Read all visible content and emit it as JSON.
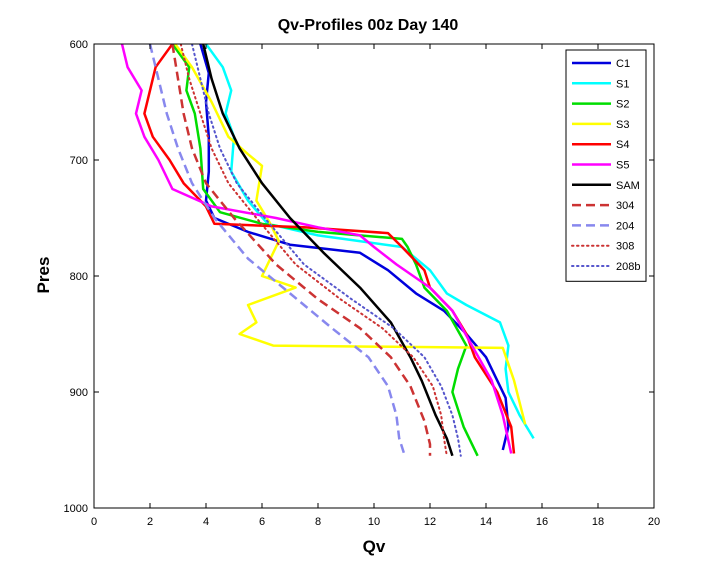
{
  "chart_data": {
    "type": "line",
    "title": "Qv-Profiles 00z Day 140",
    "xlabel": "Qv",
    "ylabel": "Pres",
    "xlim": [
      0,
      20
    ],
    "ylim": [
      600,
      1000
    ],
    "y_reversed": true,
    "grid": false,
    "legend_position": "top-right",
    "xticks": [
      0,
      2,
      4,
      6,
      8,
      10,
      12,
      14,
      16,
      18,
      20
    ],
    "yticks": [
      600,
      700,
      800,
      900,
      1000
    ],
    "series": [
      {
        "name": "C1",
        "color": "#0000dd",
        "style": "solid",
        "x": [
          3.8,
          4.1,
          4.0,
          4.1,
          4.1,
          4.0,
          4.3,
          5.5,
          7.0,
          9.5,
          10.5,
          11.5,
          12.5,
          13.3,
          14.0,
          14.4,
          14.7,
          14.8,
          14.6
        ],
        "y": [
          600,
          625,
          650,
          680,
          710,
          735,
          750,
          762,
          773,
          780,
          795,
          815,
          830,
          850,
          870,
          890,
          905,
          930,
          950
        ]
      },
      {
        "name": "S1",
        "color": "#00ffff",
        "style": "solid",
        "x": [
          4.0,
          4.6,
          4.9,
          4.7,
          5.0,
          4.9,
          5.5,
          6.2,
          8.0,
          11.0,
          12.0,
          12.6,
          13.3,
          14.5,
          14.8,
          14.7,
          14.8,
          15.2,
          15.7
        ],
        "y": [
          600,
          620,
          640,
          660,
          680,
          710,
          735,
          755,
          765,
          775,
          795,
          815,
          825,
          840,
          860,
          880,
          900,
          920,
          940
        ]
      },
      {
        "name": "S2",
        "color": "#00dd00",
        "style": "solid",
        "x": [
          2.8,
          3.4,
          3.3,
          3.6,
          3.8,
          3.9,
          4.5,
          6.0,
          8.0,
          11.0,
          11.2,
          11.5,
          11.8,
          12.6,
          13.3,
          13.0,
          12.8,
          13.2,
          13.7
        ],
        "y": [
          600,
          620,
          640,
          660,
          690,
          725,
          745,
          755,
          762,
          768,
          775,
          790,
          810,
          830,
          860,
          880,
          900,
          930,
          955
        ]
      },
      {
        "name": "S3",
        "color": "#ffff00",
        "style": "solid",
        "x": [
          2.9,
          3.5,
          4.2,
          4.8,
          5.5,
          6.0,
          5.8,
          6.3,
          6.6,
          6.3,
          6.0,
          7.2,
          5.5,
          5.8,
          5.2,
          6.4,
          14.6,
          15.0,
          15.4
        ],
        "y": [
          600,
          620,
          650,
          680,
          695,
          705,
          735,
          755,
          770,
          785,
          800,
          810,
          825,
          840,
          850,
          860,
          862,
          890,
          928
        ]
      },
      {
        "name": "S4",
        "color": "#ff0000",
        "style": "solid",
        "x": [
          2.8,
          2.2,
          2.0,
          1.8,
          2.1,
          2.7,
          3.2,
          4.0,
          4.3,
          7.5,
          10.5,
          11.0,
          11.8,
          12.0,
          12.8,
          13.3,
          13.6,
          14.4,
          14.9,
          15.0
        ],
        "y": [
          600,
          620,
          640,
          660,
          680,
          700,
          720,
          740,
          755,
          758,
          763,
          775,
          795,
          810,
          830,
          850,
          870,
          900,
          930,
          953
        ]
      },
      {
        "name": "S5",
        "color": "#ff00ff",
        "style": "solid",
        "x": [
          1.0,
          1.2,
          1.7,
          1.5,
          1.8,
          2.3,
          2.8,
          4.2,
          6.5,
          8.0,
          9.5,
          10.0,
          10.8,
          12.0,
          12.8,
          13.5,
          14.2,
          14.6,
          14.9
        ],
        "y": [
          600,
          620,
          640,
          660,
          680,
          700,
          725,
          740,
          750,
          758,
          765,
          775,
          790,
          810,
          830,
          860,
          890,
          920,
          953
        ]
      },
      {
        "name": "SAM",
        "color": "#000000",
        "style": "solid",
        "x": [
          3.9,
          4.2,
          4.6,
          5.2,
          6.0,
          7.0,
          8.2,
          9.5,
          10.6,
          11.3,
          11.7,
          12.2,
          12.6,
          12.8
        ],
        "y": [
          600,
          630,
          660,
          690,
          720,
          750,
          780,
          810,
          840,
          870,
          890,
          920,
          940,
          955
        ]
      },
      {
        "name": "304",
        "color": "#cc3333",
        "style": "dash",
        "x": [
          2.8,
          3.0,
          3.2,
          3.5,
          4.0,
          5.0,
          6.5,
          8.0,
          9.5,
          10.6,
          11.3,
          11.8,
          12.0,
          12.0
        ],
        "y": [
          600,
          630,
          660,
          690,
          720,
          750,
          790,
          820,
          845,
          870,
          895,
          925,
          945,
          955
        ]
      },
      {
        "name": "204",
        "color": "#8888ee",
        "style": "dash",
        "x": [
          2.0,
          2.3,
          2.6,
          3.0,
          3.5,
          4.3,
          5.5,
          7.0,
          8.5,
          9.8,
          10.5,
          10.8,
          10.9,
          11.1
        ],
        "y": [
          600,
          630,
          660,
          690,
          720,
          750,
          785,
          815,
          845,
          870,
          895,
          920,
          940,
          955
        ]
      },
      {
        "name": "308",
        "color": "#cc3333",
        "style": "dot",
        "x": [
          3.1,
          3.4,
          3.8,
          4.2,
          4.8,
          5.8,
          7.2,
          8.8,
          10.3,
          11.4,
          12.1,
          12.4,
          12.5,
          12.6
        ],
        "y": [
          600,
          630,
          660,
          690,
          720,
          750,
          790,
          820,
          845,
          870,
          895,
          920,
          940,
          955
        ]
      },
      {
        "name": "208b",
        "color": "#5555cc",
        "style": "dot",
        "x": [
          3.5,
          3.8,
          4.1,
          4.5,
          5.1,
          6.1,
          7.5,
          9.2,
          10.7,
          11.8,
          12.4,
          12.8,
          13.0,
          13.1
        ],
        "y": [
          600,
          630,
          660,
          690,
          720,
          750,
          790,
          820,
          845,
          870,
          895,
          920,
          940,
          955
        ]
      }
    ]
  }
}
